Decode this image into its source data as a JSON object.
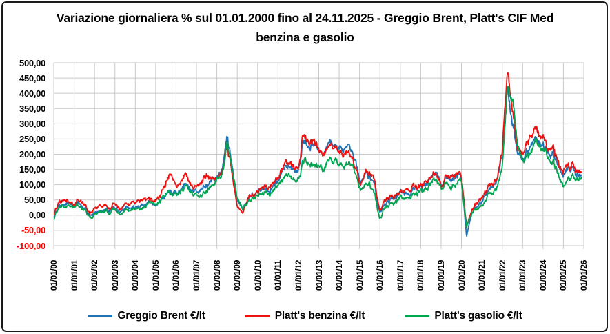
{
  "title": "Variazione giornaliera  % sul 01.01.2000 fino al 24.11.2025 - Greggio Brent, Platt's CIF Med benzina e gasolio",
  "colors": {
    "brent": "#2173B3",
    "benzina": "#ED1111",
    "gasolio": "#00A551",
    "grid": "#C9C9C9",
    "negative_tick": "#FF0000",
    "border": "#1A1A1A"
  },
  "chart_data": {
    "type": "line",
    "title": "Variazione giornaliera  % sul 01.01.2000 fino al 24.11.2025 - Greggio Brent, Platt's CIF Med benzina e gasolio",
    "xlabel": "",
    "ylabel": "",
    "ylim": [
      -100,
      500
    ],
    "y_tick_step": 50,
    "grid": true,
    "legend_position": "bottom",
    "x_unit": "decimal_year",
    "x_range": [
      2000,
      2026
    ],
    "y_tick_labels": [
      "500,00",
      "450,00",
      "400,00",
      "350,00",
      "300,00",
      "250,00",
      "200,00",
      "150,00",
      "100,00",
      "50,00",
      "0,00",
      "-50,00",
      "-100,00"
    ],
    "x_tick_labels": [
      "01/01/00",
      "01/01/01",
      "01/01/02",
      "01/01/03",
      "01/01/04",
      "01/01/05",
      "01/01/06",
      "01/01/07",
      "01/01/08",
      "01/01/09",
      "01/01/10",
      "01/01/11",
      "01/01/12",
      "01/01/13",
      "01/01/14",
      "01/01/15",
      "01/01/16",
      "01/01/17",
      "01/01/18",
      "01/01/19",
      "01/01/20",
      "01/01/21",
      "01/01/22",
      "01/01/23",
      "01/01/24",
      "01/01/25",
      "01/01/26"
    ],
    "anchors_x": [
      2000,
      2000.25,
      2000.5,
      2000.75,
      2001,
      2001.25,
      2001.5,
      2001.75,
      2002,
      2002.25,
      2002.5,
      2002.75,
      2003,
      2003.25,
      2003.5,
      2003.75,
      2004,
      2004.25,
      2004.5,
      2004.75,
      2005,
      2005.25,
      2005.5,
      2005.75,
      2006,
      2006.25,
      2006.5,
      2006.75,
      2007,
      2007.25,
      2007.5,
      2007.75,
      2008,
      2008.25,
      2008.5,
      2008.75,
      2009,
      2009.25,
      2009.5,
      2009.75,
      2010,
      2010.25,
      2010.5,
      2010.75,
      2011,
      2011.25,
      2011.5,
      2011.75,
      2012,
      2012.25,
      2012.5,
      2012.75,
      2013,
      2013.25,
      2013.5,
      2013.75,
      2014,
      2014.25,
      2014.5,
      2014.75,
      2015,
      2015.25,
      2015.5,
      2015.75,
      2016,
      2016.25,
      2016.5,
      2016.75,
      2017,
      2017.25,
      2017.5,
      2017.75,
      2018,
      2018.25,
      2018.5,
      2018.75,
      2019,
      2019.25,
      2019.5,
      2019.75,
      2020,
      2020.25,
      2020.5,
      2020.75,
      2021,
      2021.25,
      2021.5,
      2021.75,
      2022,
      2022.25,
      2022.5,
      2022.75,
      2023,
      2023.25,
      2023.5,
      2023.75,
      2024,
      2024.25,
      2024.5,
      2024.75,
      2025,
      2025.25,
      2025.5,
      2025.75,
      2025.9
    ],
    "series": [
      {
        "name": "Greggio Brent €/lt",
        "color": "#2173B3",
        "values": [
          -5,
          30,
          40,
          48,
          25,
          32,
          28,
          2,
          5,
          18,
          18,
          22,
          32,
          10,
          15,
          18,
          20,
          32,
          38,
          42,
          38,
          55,
          72,
          85,
          72,
          92,
          105,
          80,
          72,
          88,
          102,
          115,
          122,
          150,
          268,
          160,
          45,
          15,
          45,
          60,
          68,
          80,
          72,
          85,
          108,
          152,
          145,
          142,
          162,
          250,
          225,
          245,
          228,
          210,
          228,
          222,
          215,
          218,
          225,
          185,
          105,
          135,
          122,
          82,
          -5,
          35,
          48,
          60,
          78,
          72,
          65,
          90,
          95,
          105,
          122,
          158,
          105,
          128,
          122,
          140,
          125,
          -68,
          10,
          25,
          45,
          70,
          90,
          120,
          200,
          390,
          300,
          220,
          195,
          210,
          235,
          245,
          230,
          190,
          205,
          165,
          130,
          155,
          145,
          135,
          140
        ]
      },
      {
        "name": "Platt's benzina €/lt",
        "color": "#ED1111",
        "values": [
          0,
          45,
          55,
          58,
          32,
          45,
          42,
          12,
          18,
          32,
          28,
          28,
          42,
          22,
          28,
          32,
          38,
          55,
          58,
          52,
          48,
          72,
          105,
          150,
          92,
          118,
          140,
          95,
          90,
          118,
          132,
          122,
          122,
          148,
          232,
          135,
          30,
          0,
          50,
          62,
          72,
          88,
          82,
          95,
          112,
          162,
          158,
          150,
          172,
          280,
          235,
          265,
          225,
          205,
          222,
          205,
          198,
          202,
          208,
          170,
          102,
          148,
          138,
          95,
          5,
          48,
          60,
          68,
          82,
          85,
          78,
          95,
          100,
          112,
          128,
          152,
          102,
          135,
          132,
          148,
          128,
          -35,
          22,
          35,
          55,
          80,
          100,
          125,
          210,
          455,
          340,
          240,
          215,
          240,
          270,
          285,
          255,
          200,
          225,
          175,
          140,
          168,
          160,
          150,
          148
        ]
      },
      {
        "name": "Platt's gasolio €/lt",
        "color": "#00A551",
        "values": [
          -12,
          22,
          30,
          42,
          25,
          28,
          22,
          -2,
          0,
          12,
          8,
          12,
          28,
          5,
          10,
          8,
          12,
          22,
          32,
          42,
          38,
          55,
          70,
          78,
          72,
          85,
          95,
          72,
          62,
          72,
          85,
          98,
          112,
          140,
          238,
          155,
          50,
          12,
          38,
          50,
          58,
          68,
          62,
          72,
          92,
          118,
          118,
          112,
          132,
          185,
          170,
          182,
          175,
          160,
          172,
          168,
          165,
          162,
          168,
          140,
          88,
          100,
          92,
          58,
          -20,
          22,
          35,
          45,
          62,
          58,
          55,
          75,
          82,
          88,
          102,
          128,
          92,
          105,
          100,
          118,
          105,
          -38,
          8,
          20,
          35,
          55,
          70,
          95,
          160,
          385,
          370,
          245,
          185,
          195,
          225,
          235,
          215,
          170,
          180,
          140,
          92,
          125,
          120,
          118,
          128
        ]
      }
    ]
  }
}
